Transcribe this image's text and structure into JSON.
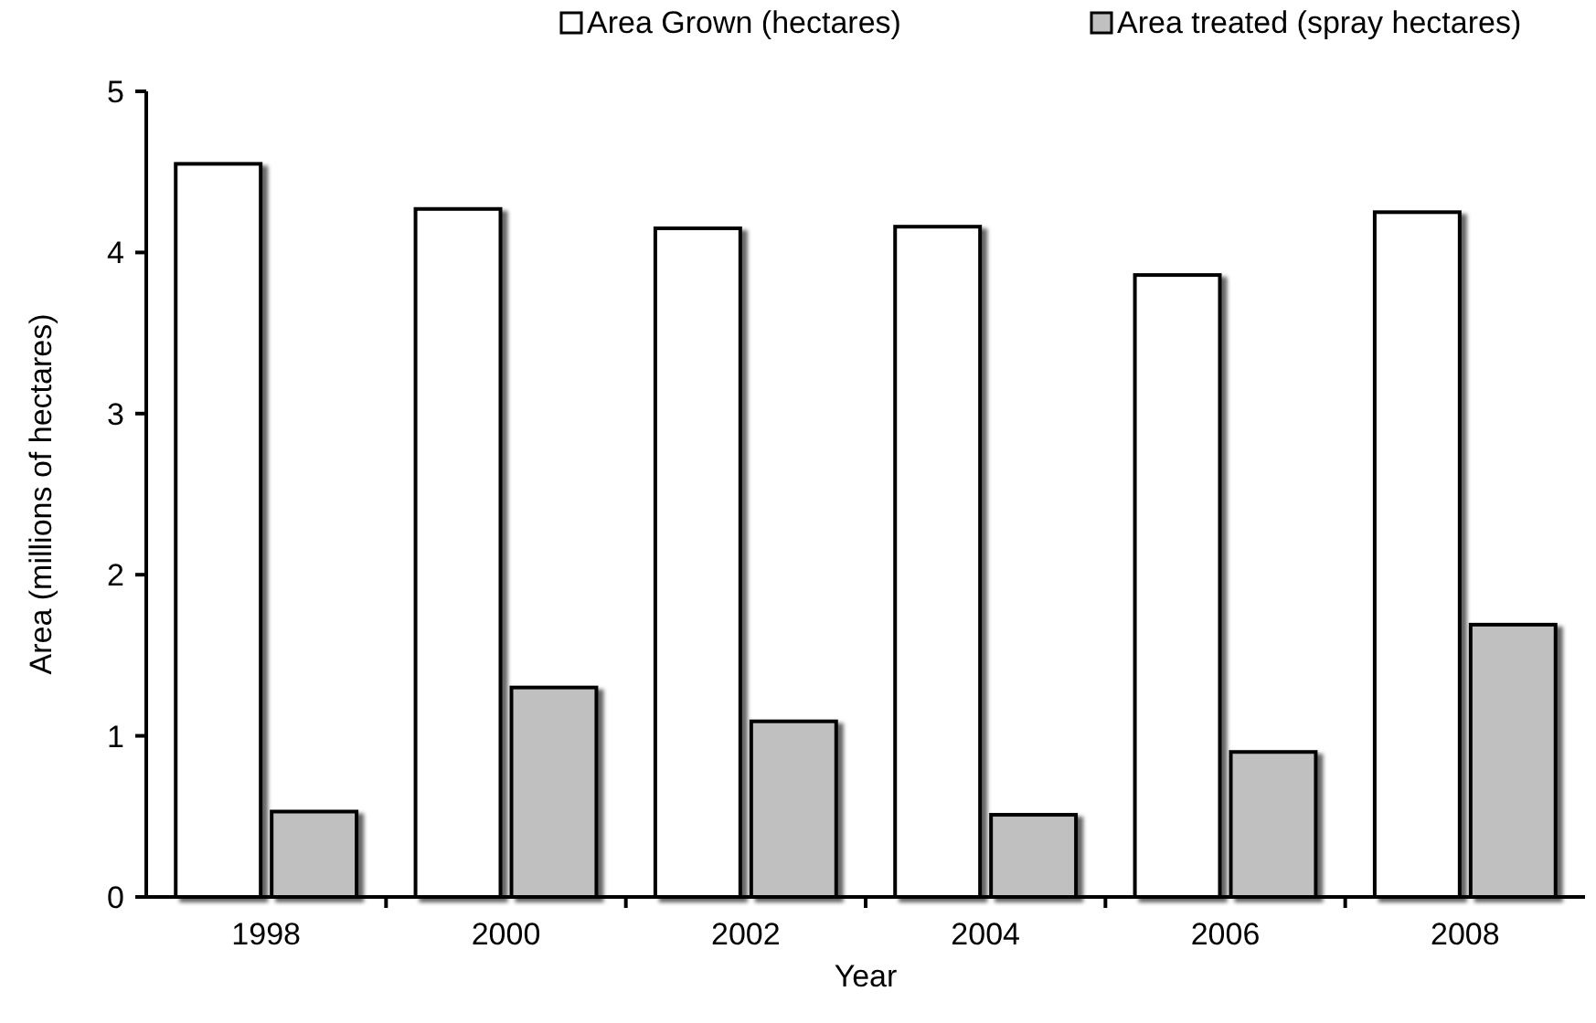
{
  "chart_data": {
    "type": "bar",
    "xlabel": "Year",
    "ylabel": "Area (millions of hectares)",
    "categories": [
      "1998",
      "2000",
      "2002",
      "2004",
      "2006",
      "2008"
    ],
    "series": [
      {
        "name": "Area Grown (hectares)",
        "color": "#ffffff",
        "values": [
          4.55,
          4.27,
          4.15,
          4.16,
          3.86,
          4.25
        ]
      },
      {
        "name": "Area treated (spray hectares)",
        "color": "#c0c0c0",
        "values": [
          0.53,
          1.3,
          1.09,
          0.51,
          0.9,
          1.69
        ]
      }
    ],
    "ylim": [
      0,
      5
    ],
    "yticks": [
      0,
      1,
      2,
      3,
      4,
      5
    ],
    "grid": false,
    "legend": "top right"
  }
}
